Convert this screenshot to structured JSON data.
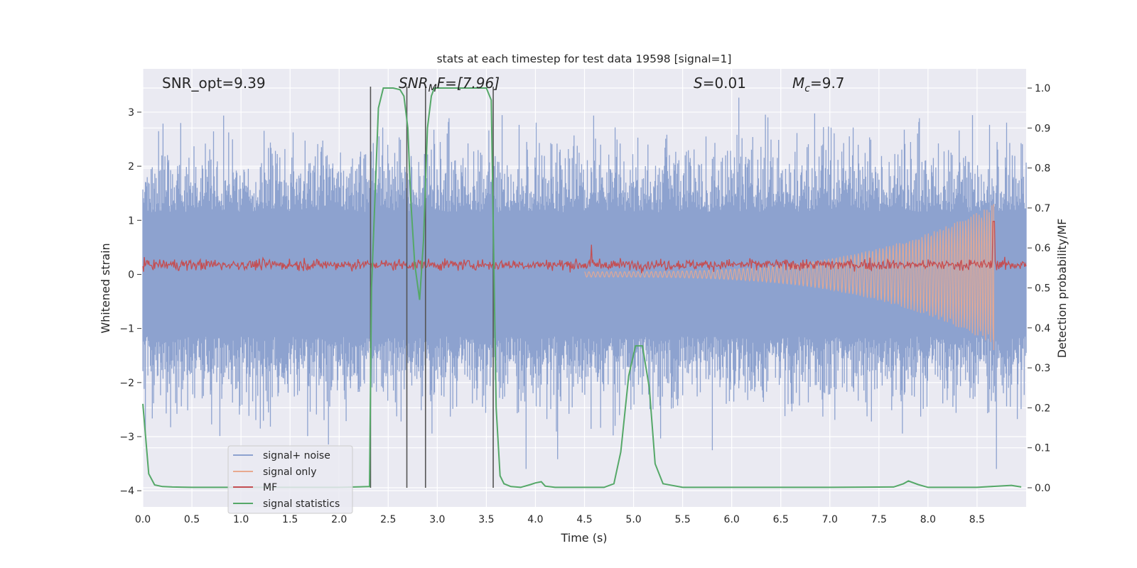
{
  "chart_data": {
    "type": "line",
    "title": "stats at each timestep for test data 19598 [signal=1]",
    "xlabel": "Time (s)",
    "ylabel_left": "Whitened strain",
    "ylabel_right": "Detection probability/MF",
    "xlim": [
      0,
      9.0
    ],
    "ylim_left": [
      -4.3,
      3.8
    ],
    "ylim_right": [
      -0.048,
      1.048
    ],
    "x_ticks": [
      0.0,
      0.5,
      1.0,
      1.5,
      2.0,
      2.5,
      3.0,
      3.5,
      4.0,
      4.5,
      5.0,
      5.5,
      6.0,
      6.5,
      7.0,
      7.5,
      8.0,
      8.5
    ],
    "x_tick_labels": [
      "0.0",
      "0.5",
      "1.0",
      "1.5",
      "2.0",
      "2.5",
      "3.0",
      "3.5",
      "4.0",
      "4.5",
      "5.0",
      "5.5",
      "6.0",
      "6.5",
      "7.0",
      "7.5",
      "8.0",
      "8.5"
    ],
    "y_left_ticks": [
      3,
      2,
      1,
      0,
      -1,
      -2,
      -3,
      -4
    ],
    "y_left_tick_labels": [
      "3",
      "2",
      "1",
      "0",
      "−1",
      "−2",
      "−3",
      "−4"
    ],
    "y_right_ticks": [
      1.0,
      0.9,
      0.8,
      0.7,
      0.6,
      0.5,
      0.4,
      0.3,
      0.2,
      0.1,
      0.0
    ],
    "y_right_tick_labels": [
      "1.0",
      "0.9",
      "0.8",
      "0.7",
      "0.6",
      "0.5",
      "0.4",
      "0.3",
      "0.2",
      "0.1",
      "0.0"
    ],
    "annotations": {
      "snr_opt": "SNR_opt=9.39",
      "snr_mf_main": "SNR",
      "snr_mf_sub": "M",
      "snr_mf_rest": "F=[7.96]",
      "s_italic": "S",
      "s_rest": "=0.01",
      "mc_main": "M",
      "mc_sub": "c",
      "mc_rest": "=9.7"
    },
    "vertical_lines_x": [
      2.32,
      2.69,
      2.88,
      3.57
    ],
    "series": [
      {
        "name": "signal+ noise",
        "color": "#8da2cf",
        "style": "dense noise between about -1.8 and +1.8 whitened strain with spikes to about +/-3.4"
      },
      {
        "name": "signal only",
        "color": "#e8a98f",
        "style": "chirp starting near 4.5 s, amplitude growing to about 1.3 at 8.67 s merger"
      },
      {
        "name": "MF",
        "color": "#c44e52",
        "style": "narrow band around 0.15 to 0.25 whitened strain, peak near 1.0 at 8.67 s"
      },
      {
        "name": "signal statistics",
        "color": "#55a868",
        "x": [
          0.0,
          0.06,
          0.12,
          0.2,
          0.3,
          0.5,
          1.0,
          1.5,
          2.0,
          2.31,
          2.33,
          2.4,
          2.45,
          2.55,
          2.62,
          2.66,
          2.7,
          2.73,
          2.77,
          2.82,
          2.86,
          2.9,
          2.94,
          2.97,
          3.05,
          3.2,
          3.4,
          3.5,
          3.55,
          3.6,
          3.64,
          3.68,
          3.75,
          3.85,
          3.95,
          4.0,
          4.06,
          4.1,
          4.2,
          4.4,
          4.7,
          4.8,
          4.87,
          4.95,
          5.02,
          5.09,
          5.16,
          5.22,
          5.3,
          5.5,
          6.0,
          7.0,
          7.65,
          7.75,
          7.8,
          7.9,
          8.0,
          8.5,
          8.85,
          8.95
        ],
        "y": [
          0.21,
          0.035,
          0.007,
          0.003,
          0.002,
          0.001,
          0.001,
          0.001,
          0.001,
          0.003,
          0.5,
          0.95,
          1.0,
          1.0,
          0.996,
          0.98,
          0.9,
          0.72,
          0.56,
          0.47,
          0.62,
          0.9,
          0.98,
          1.0,
          1.0,
          1.0,
          1.0,
          1.0,
          0.97,
          0.2,
          0.03,
          0.01,
          0.003,
          0.001,
          0.008,
          0.012,
          0.015,
          0.004,
          0.001,
          0.001,
          0.001,
          0.01,
          0.09,
          0.28,
          0.355,
          0.355,
          0.25,
          0.06,
          0.01,
          0.001,
          0.001,
          0.001,
          0.002,
          0.01,
          0.017,
          0.008,
          0.001,
          0.001,
          0.006,
          0.002
        ]
      }
    ],
    "legend": {
      "position": "lower-left",
      "entries": [
        "signal+ noise",
        "signal only",
        "MF",
        "signal statistics"
      ]
    },
    "colors": {
      "plot_background": "#eaeaf2",
      "grid": "#ffffff",
      "vline": "#555555"
    }
  }
}
